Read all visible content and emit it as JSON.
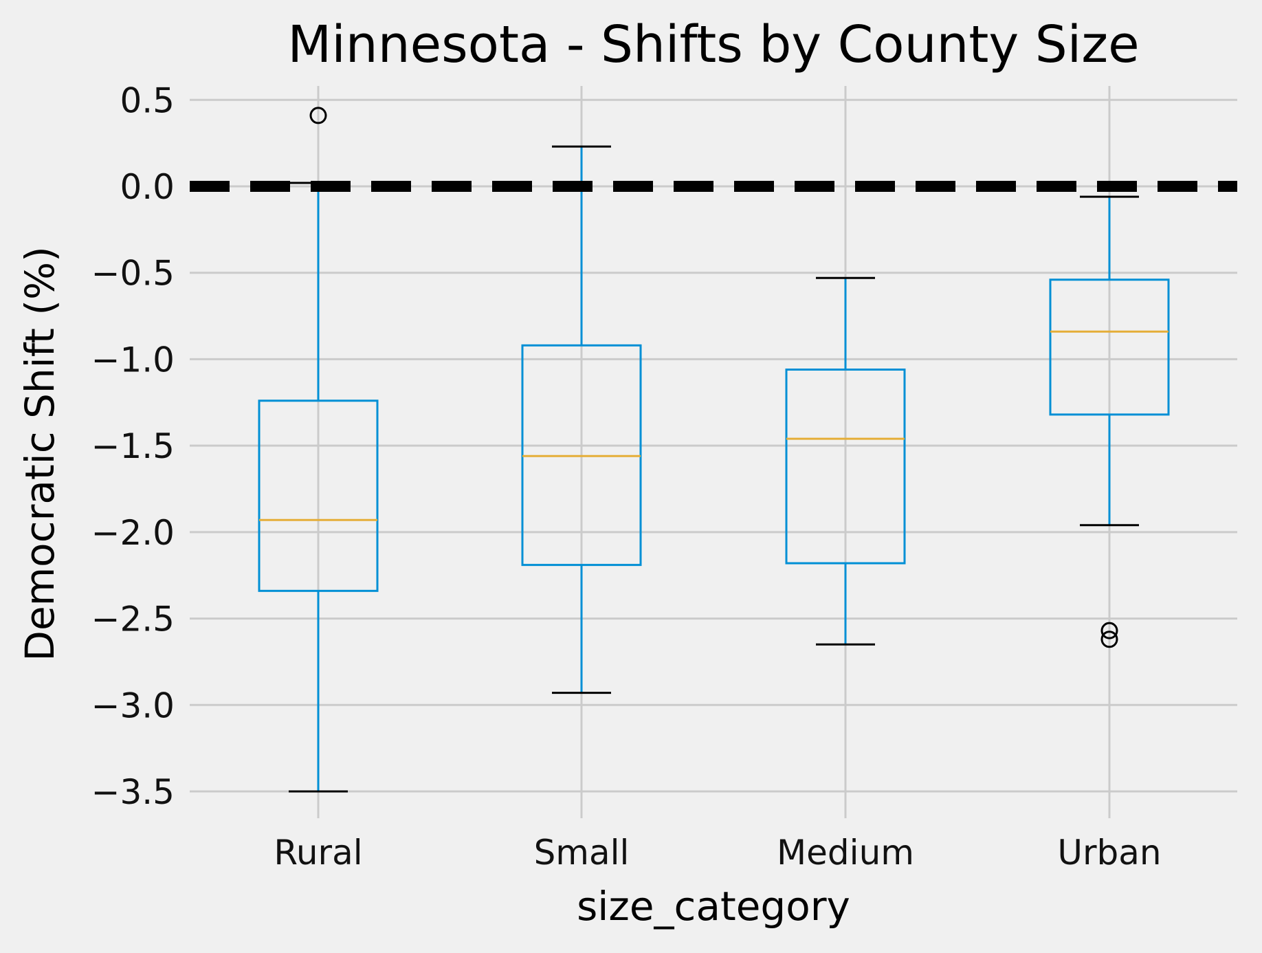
{
  "chart_data": {
    "type": "box",
    "title": "Minnesota - Shifts by County Size",
    "xlabel": "size_category",
    "ylabel": "Democratic Shift (%)",
    "ylim": [
      -3.62,
      0.6
    ],
    "yticks": [
      0.5,
      0.0,
      -0.5,
      -1.0,
      -1.5,
      -2.0,
      -2.5,
      -3.0,
      -3.5
    ],
    "ytick_labels": [
      "0.5",
      "0.0",
      "−0.5",
      "−1.0",
      "−1.5",
      "−2.0",
      "−2.5",
      "−3.0",
      "−3.5"
    ],
    "grid": true,
    "reference_line": {
      "y": 0.0,
      "style": "dashed",
      "color": "#000000"
    },
    "categories": [
      "Rural",
      "Small",
      "Medium",
      "Urban"
    ],
    "boxes": [
      {
        "category": "Rural",
        "whisker_low": -3.5,
        "q1": -2.34,
        "median": -1.93,
        "q3": -1.24,
        "whisker_high": 0.02,
        "outliers": [
          0.41
        ]
      },
      {
        "category": "Small",
        "whisker_low": -2.93,
        "q1": -2.19,
        "median": -1.56,
        "q3": -0.92,
        "whisker_high": 0.23,
        "outliers": []
      },
      {
        "category": "Medium",
        "whisker_low": -2.65,
        "q1": -2.18,
        "median": -1.46,
        "q3": -1.06,
        "whisker_high": -0.53,
        "outliers": []
      },
      {
        "category": "Urban",
        "whisker_low": -1.96,
        "q1": -1.32,
        "median": -0.84,
        "q3": -0.54,
        "whisker_high": -0.06,
        "outliers": [
          -2.57,
          -2.62
        ]
      }
    ],
    "colors": {
      "box": "#008fd5",
      "median": "#e5ae38",
      "whisker_cap": "#000000",
      "outlier": "#000000",
      "background": "#f0f0f0",
      "grid": "#cbcbcb"
    }
  }
}
